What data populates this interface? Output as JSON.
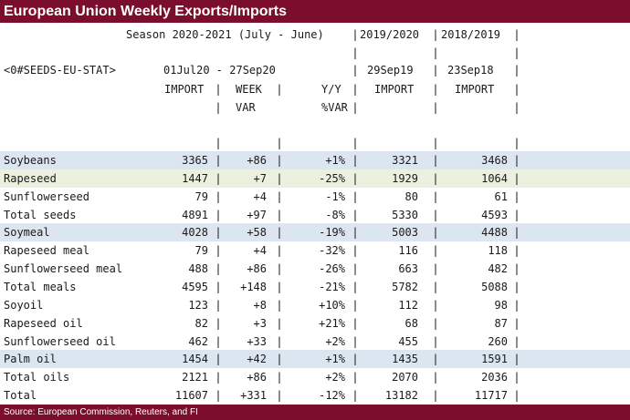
{
  "title": "European Union Weekly Exports/Imports",
  "header": {
    "season": "Season 2020-2021 (July - June)",
    "col_2019_2020": "2019/2020",
    "col_2018_2019": "2018/2019",
    "ric": "<0#SEEDS-EU-STAT>",
    "period": "01Jul20 - 27Sep20",
    "date_2019": "29Sep19",
    "date_2018": "23Sep18",
    "import": "IMPORT",
    "week": "WEEK",
    "yy": "Y/Y",
    "import_2019": "IMPORT",
    "import_2018": "IMPORT",
    "var": "VAR",
    "pct_var": "%VAR"
  },
  "rows": [
    {
      "name": "Soybeans",
      "import": "3365",
      "week_var": "+86",
      "yy": "+1%",
      "imp2019": "3321",
      "imp2018": "3468",
      "highlight": "blue"
    },
    {
      "name": "Rapeseed",
      "import": "1447",
      "week_var": "+7",
      "yy": "-25%",
      "imp2019": "1929",
      "imp2018": "1064",
      "highlight": "green"
    },
    {
      "name": "Sunflowerseed",
      "import": "79",
      "week_var": "+4",
      "yy": "-1%",
      "imp2019": "80",
      "imp2018": "61",
      "highlight": ""
    },
    {
      "name": "Total seeds",
      "import": "4891",
      "week_var": "+97",
      "yy": "-8%",
      "imp2019": "5330",
      "imp2018": "4593",
      "highlight": ""
    },
    {
      "name": "Soymeal",
      "import": "4028",
      "week_var": "+58",
      "yy": "-19%",
      "imp2019": "5003",
      "imp2018": "4488",
      "highlight": "blue"
    },
    {
      "name": "Rapeseed meal",
      "import": "79",
      "week_var": "+4",
      "yy": "-32%",
      "imp2019": "116",
      "imp2018": "118",
      "highlight": ""
    },
    {
      "name": "Sunflowerseed meal",
      "import": "488",
      "week_var": "+86",
      "yy": "-26%",
      "imp2019": "663",
      "imp2018": "482",
      "highlight": ""
    },
    {
      "name": "Total meals",
      "import": "4595",
      "week_var": "+148",
      "yy": "-21%",
      "imp2019": "5782",
      "imp2018": "5088",
      "highlight": ""
    },
    {
      "name": "Soyoil",
      "import": "123",
      "week_var": "+8",
      "yy": "+10%",
      "imp2019": "112",
      "imp2018": "98",
      "highlight": ""
    },
    {
      "name": "Rapeseed oil",
      "import": "82",
      "week_var": "+3",
      "yy": "+21%",
      "imp2019": "68",
      "imp2018": "87",
      "highlight": ""
    },
    {
      "name": "Sunflowerseed oil",
      "import": "462",
      "week_var": "+33",
      "yy": "+2%",
      "imp2019": "455",
      "imp2018": "260",
      "highlight": ""
    },
    {
      "name": "Palm oil",
      "import": "1454",
      "week_var": "+42",
      "yy": "+1%",
      "imp2019": "1435",
      "imp2018": "1591",
      "highlight": "blue"
    },
    {
      "name": "Total oils",
      "import": "2121",
      "week_var": "+86",
      "yy": "+2%",
      "imp2019": "2070",
      "imp2018": "2036",
      "highlight": ""
    },
    {
      "name": "Total",
      "import": "11607",
      "week_var": "+331",
      "yy": "-12%",
      "imp2019": "13182",
      "imp2018": "11717",
      "highlight": ""
    }
  ],
  "separator": "|",
  "source": "Source: European Commission, Reuters, and FI",
  "colors": {
    "title_bg": "#7a0e2c",
    "highlight_blue": "#dce6f1",
    "highlight_green": "#ebf1de"
  }
}
